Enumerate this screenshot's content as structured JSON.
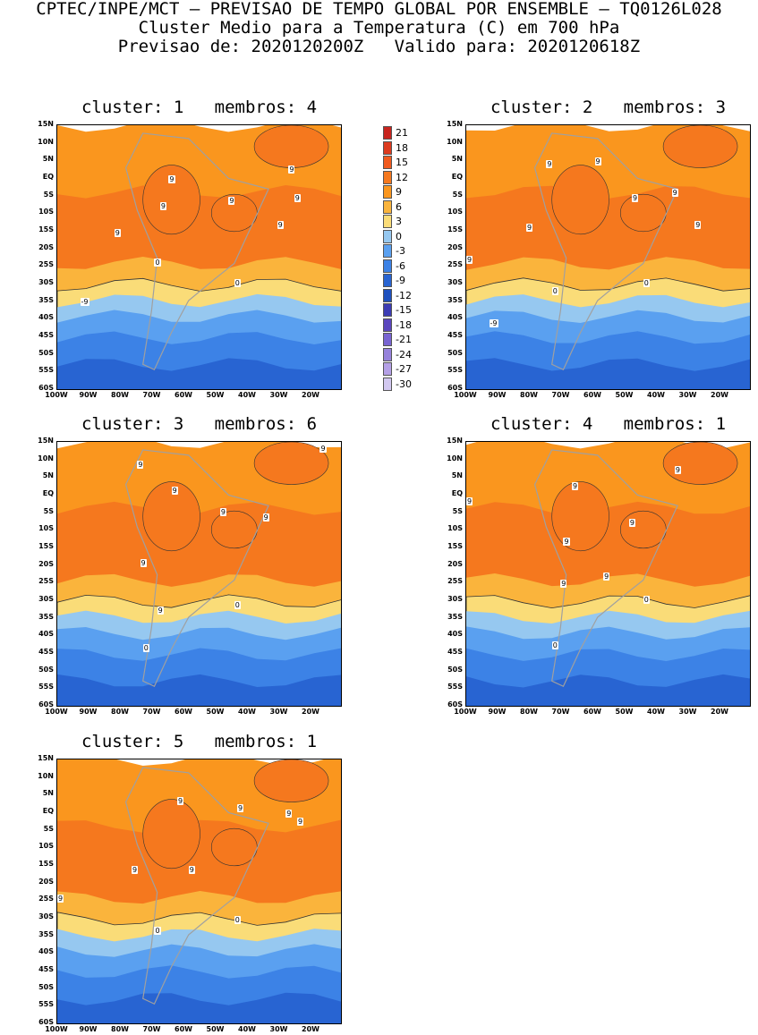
{
  "header": {
    "line1": "CPTEC/INPE/MCT – PREVISAO DE TEMPO GLOBAL POR ENSEMBLE – TQ0126L028",
    "line2": "Cluster Medio para a Temperatura (C) em 700 hPa",
    "line3": "Previsao de: 2020120200Z   Valido para: 2020120618Z"
  },
  "axes": {
    "lat_labels": [
      "15N",
      "10N",
      "5N",
      "EQ",
      "5S",
      "10S",
      "15S",
      "20S",
      "25S",
      "30S",
      "35S",
      "40S",
      "45S",
      "50S",
      "55S",
      "60S"
    ],
    "lon_labels": [
      "100W",
      "90W",
      "80W",
      "70W",
      "60W",
      "50W",
      "40W",
      "30W",
      "20W"
    ]
  },
  "panels": [
    {
      "title": "cluster: 1   membros: 4",
      "labels": [
        "9",
        "9",
        "9",
        "9",
        "9",
        "9",
        "9",
        "0",
        "0",
        "-9"
      ]
    },
    {
      "title": "cluster: 2   membros: 3",
      "labels": [
        "9",
        "9",
        "9",
        "9",
        "9",
        "9",
        "9",
        "0",
        "0",
        "-9"
      ]
    },
    {
      "title": "cluster: 3   membros: 6",
      "labels": [
        "9",
        "9",
        "9",
        "9",
        "9",
        "9",
        "9",
        "0",
        "0"
      ]
    },
    {
      "title": "cluster: 4   membros: 1",
      "labels": [
        "9",
        "9",
        "9",
        "9",
        "9",
        "9",
        "9",
        "0",
        "0"
      ]
    },
    {
      "title": "cluster: 5   membros: 1",
      "labels": [
        "9",
        "9",
        "9",
        "9",
        "9",
        "9",
        "9",
        "0",
        "0"
      ]
    }
  ],
  "legend": {
    "values": [
      "21",
      "18",
      "15",
      "12",
      "9",
      "6",
      "3",
      "0",
      "-3",
      "-6",
      "-9",
      "-12",
      "-15",
      "-18",
      "-21",
      "-24",
      "-27",
      "-30"
    ],
    "colors": [
      "#c8241e",
      "#dc3a1e",
      "#f05a1e",
      "#f5781e",
      "#fa961e",
      "#fab43c",
      "#fadc78",
      "#96c8f0",
      "#5aa0f0",
      "#3c82e6",
      "#2864d2",
      "#1e50be",
      "#3c3cb4",
      "#5a46be",
      "#7864d2",
      "#9682dc",
      "#b4a0e6",
      "#d2c8f0"
    ]
  },
  "colors": {
    "band_warm2": "#f5781e",
    "band_warm1": "#fa961e",
    "band_mild": "#fab43c",
    "band_yellow": "#fadc78",
    "band_cool1": "#96c8f0",
    "band_cool2": "#5aa0f0",
    "band_cool3": "#3c82e6",
    "band_cold": "#2864d2",
    "coast": "#a0a0a0"
  }
}
